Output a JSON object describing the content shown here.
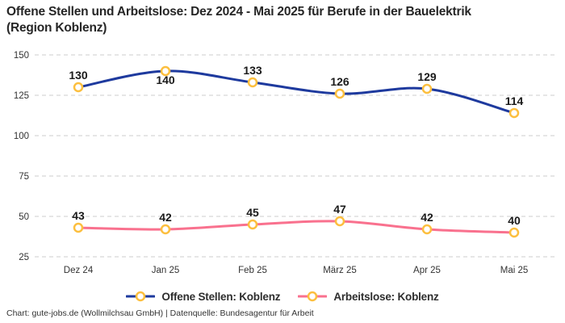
{
  "title": "Offene Stellen und Arbeitslose: Dez 2024 - Mai 2025 für Berufe in der Bauelektrik\n(Region Koblenz)",
  "chart_data": {
    "type": "line",
    "title": "Offene Stellen und Arbeitslose: Dez 2024 - Mai 2025 für Berufe in der Bauelektrik (Region Koblenz)",
    "categories": [
      "Dez 24",
      "Jan 25",
      "Feb 25",
      "März 25",
      "Apr 25",
      "Mai 25"
    ],
    "series": [
      {
        "name": "Offene Stellen: Koblenz",
        "values": [
          130,
          140,
          133,
          126,
          129,
          114
        ],
        "color": "#1e3a9e",
        "label_placement": [
          "above",
          "below",
          "above",
          "above",
          "above",
          "above"
        ]
      },
      {
        "name": "Arbeitslose: Koblenz",
        "values": [
          43,
          42,
          45,
          47,
          42,
          40
        ],
        "color": "#f9718e",
        "label_placement": [
          "above",
          "above",
          "above",
          "above",
          "above",
          "above"
        ]
      }
    ],
    "ylim": [
      25,
      150
    ],
    "yticks": [
      25,
      50,
      75,
      100,
      125,
      150
    ],
    "grid": "horizontal-dashed",
    "legend_position": "bottom",
    "marker": {
      "shape": "circle",
      "fill": "#ffffff",
      "stroke": "#fcbf3f"
    },
    "style": {
      "grid_color": "#cccccc",
      "tick_color": "#333333",
      "data_label_color": "#1a1a1a",
      "background": "#ffffff"
    }
  },
  "footer": "Chart: gute-jobs.de (Wollmilchsau GmbH) | Datenquelle: Bundesagentur für Arbeit"
}
